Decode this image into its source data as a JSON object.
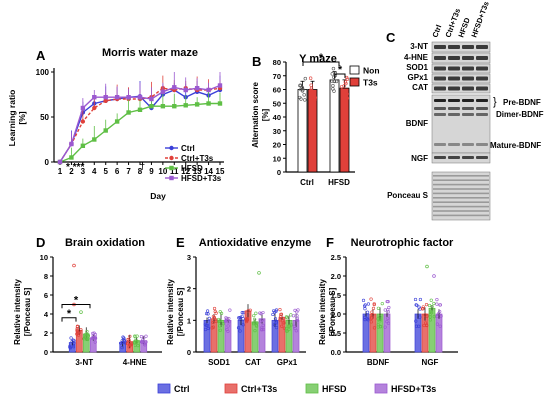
{
  "panels": {
    "A": {
      "letter": "A",
      "title": "Morris water maze",
      "ylabel_line1": "Learning ratio",
      "ylabel_line2": "[%]",
      "xlabel": "Day",
      "yticks": [
        "0",
        "50",
        "100"
      ],
      "xticks": [
        "1",
        "2",
        "3",
        "4",
        "5",
        "6",
        "7",
        "8",
        "9",
        "10",
        "11",
        "12",
        "13",
        "14",
        "15"
      ],
      "annot": "* ***",
      "annot2": "†",
      "legend": [
        "Ctrl",
        "Ctrl+T3s",
        "HFSD",
        "HFSD+T3s"
      ]
    },
    "B": {
      "letter": "B",
      "title": "Y maze",
      "ylabel_line1": "Alternation score",
      "ylabel_line2": "[%]",
      "yticks": [
        "0",
        "10",
        "20",
        "30",
        "40",
        "50",
        "60",
        "70",
        "80"
      ],
      "categories": [
        "Ctrl",
        "HFSD"
      ],
      "legend": [
        "Non",
        "T3s"
      ],
      "star": "*"
    },
    "C": {
      "letter": "C",
      "lanes": [
        "Ctrl",
        "Ctrl+T3s",
        "HFSD",
        "HFSD+T3s"
      ],
      "left_labels": [
        "3-NT",
        "4-HNE",
        "SOD1",
        "GPx1",
        "CAT",
        "BDNF",
        "NGF",
        "Ponceau S"
      ],
      "right_labels": [
        "Pre-BDNF",
        "Dimer-BDNF",
        "Mature-BDNF"
      ]
    },
    "D": {
      "letter": "D",
      "title": "Brain oxidation",
      "ylabel_line1": "Relative intensity",
      "ylabel_line2": "[/Ponceau S]",
      "yticks": [
        "0",
        "2",
        "4",
        "6",
        "8",
        "10"
      ],
      "categories": [
        "3-NT",
        "4-HNE"
      ],
      "star": "*"
    },
    "E": {
      "letter": "E",
      "title": "Antioxidative enzyme",
      "ylabel_line1": "Relative intensity",
      "ylabel_line2": "[/Ponceau S]",
      "yticks": [
        "0",
        "1",
        "2",
        "3"
      ],
      "categories": [
        "SOD1",
        "CAT",
        "GPx1"
      ]
    },
    "F": {
      "letter": "F",
      "title": "Neurotrophic factor",
      "ylabel_line1": "Relative intensity",
      "ylabel_line2": "[/Ponceau S]",
      "yticks": [
        "0.0",
        "0.5",
        "1.0",
        "1.5",
        "2.0",
        "2.5"
      ],
      "categories": [
        "BDNF",
        "NGF"
      ]
    }
  },
  "bottom_legend": [
    "Ctrl",
    "Ctrl+T3s",
    "HFSD",
    "HFSD+T3s"
  ],
  "colors": {
    "ctrl": "#3a3fd8",
    "ctrlT3s": "#e0403a",
    "hfsd": "#5fbf45",
    "hfsdT3s": "#9b59d0"
  },
  "chart_data": [
    {
      "panel": "A",
      "type": "line",
      "title": "Morris water maze",
      "xlabel": "Day",
      "ylabel": "Learning ratio [%]",
      "x": [
        1,
        2,
        3,
        4,
        5,
        6,
        7,
        8,
        9,
        10,
        11,
        12,
        13,
        14,
        15
      ],
      "ylim": [
        0,
        100
      ],
      "series": [
        {
          "name": "Ctrl",
          "values": [
            0,
            20,
            55,
            65,
            68,
            70,
            72,
            73,
            60,
            75,
            80,
            72,
            78,
            74,
            80
          ]
        },
        {
          "name": "Ctrl+T3s",
          "values": [
            0,
            20,
            45,
            60,
            68,
            70,
            70,
            70,
            72,
            82,
            80,
            82,
            80,
            80,
            82
          ]
        },
        {
          "name": "HFSD",
          "values": [
            0,
            5,
            18,
            25,
            35,
            45,
            55,
            58,
            62,
            62,
            62,
            63,
            64,
            65,
            65
          ]
        },
        {
          "name": "HFSD+T3s",
          "values": [
            0,
            20,
            60,
            72,
            72,
            72,
            72,
            72,
            70,
            78,
            83,
            80,
            82,
            80,
            85
          ]
        }
      ]
    },
    {
      "panel": "B",
      "type": "bar",
      "title": "Y maze",
      "ylabel": "Alternation score [%]",
      "categories": [
        "Ctrl",
        "HFSD"
      ],
      "ylim": [
        0,
        80
      ],
      "series": [
        {
          "name": "Non",
          "values": [
            60,
            67
          ]
        },
        {
          "name": "T3s",
          "values": [
            60,
            61
          ]
        }
      ]
    },
    {
      "panel": "D",
      "type": "bar",
      "title": "Brain oxidation",
      "ylabel": "Relative intensity [/Ponceau S]",
      "categories": [
        "3-NT",
        "4-HNE"
      ],
      "ylim": [
        0,
        10
      ],
      "series": [
        {
          "name": "Ctrl",
          "values": [
            1.0,
            1.0
          ]
        },
        {
          "name": "Ctrl+T3s",
          "values": [
            2.3,
            1.1
          ]
        },
        {
          "name": "HFSD",
          "values": [
            1.9,
            1.2
          ]
        },
        {
          "name": "HFSD+T3s",
          "values": [
            1.5,
            1.2
          ]
        }
      ]
    },
    {
      "panel": "E",
      "type": "bar",
      "title": "Antioxidative enzyme",
      "ylabel": "Relative intensity [/Ponceau S]",
      "categories": [
        "SOD1",
        "CAT",
        "GPx1"
      ],
      "ylim": [
        0,
        3
      ],
      "series": [
        {
          "name": "Ctrl",
          "values": [
            1.0,
            1.0,
            1.0
          ]
        },
        {
          "name": "Ctrl+T3s",
          "values": [
            1.05,
            1.3,
            1.1
          ]
        },
        {
          "name": "HFSD",
          "values": [
            1.0,
            0.95,
            1.0
          ]
        },
        {
          "name": "HFSD+T3s",
          "values": [
            1.0,
            1.05,
            1.0
          ]
        }
      ]
    },
    {
      "panel": "F",
      "type": "bar",
      "title": "Neurotrophic factor",
      "ylabel": "Relative intensity [/Ponceau S]",
      "categories": [
        "BDNF",
        "NGF"
      ],
      "ylim": [
        0,
        2.5
      ],
      "series": [
        {
          "name": "Ctrl",
          "values": [
            1.0,
            1.0
          ]
        },
        {
          "name": "Ctrl+T3s",
          "values": [
            1.0,
            1.0
          ]
        },
        {
          "name": "HFSD",
          "values": [
            1.0,
            1.15
          ]
        },
        {
          "name": "HFSD+T3s",
          "values": [
            1.0,
            1.0
          ]
        }
      ]
    }
  ]
}
